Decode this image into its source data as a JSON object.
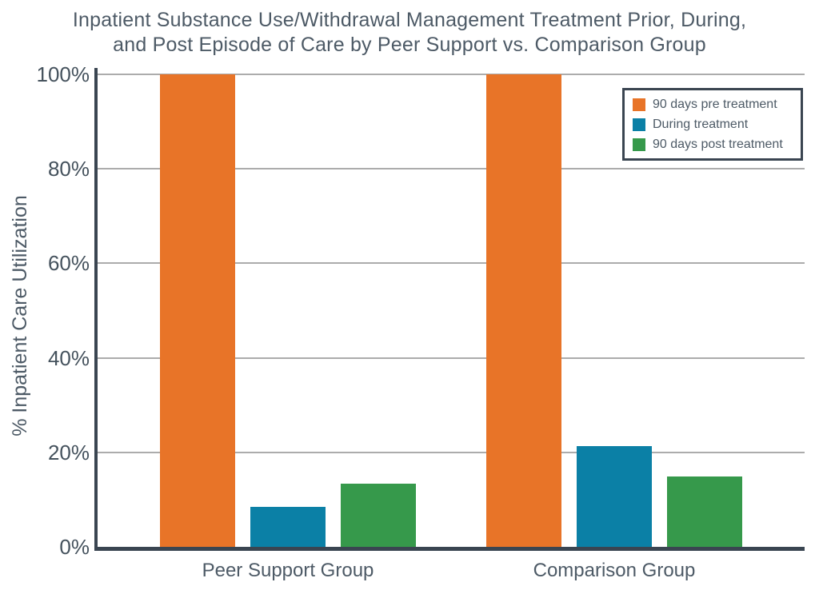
{
  "title": {
    "line1": "Inpatient Substance Use/Withdrawal Management Treatment Prior, During,",
    "line2": "and Post Episode of Care by Peer Support vs. Comparison Group"
  },
  "palette": {
    "pre_treatment_orange": "#E87428",
    "during_treatment_blue": "#0B80A6",
    "post_treatment_green": "#36994B",
    "axis_dark": "#3A4551",
    "gridline_gray": "#ACACAC",
    "text_slate": "#4D5A66"
  },
  "chart_data": {
    "type": "bar",
    "title": "Inpatient Substance Use/Withdrawal Management Treatment Prior, During, and Post Episode of Care by Peer Support vs. Comparison Group",
    "xlabel": "",
    "ylabel": "% Inpatient Care Utilization",
    "ylim": [
      0,
      100
    ],
    "grid": true,
    "legend_position": "upper right",
    "y_ticks": [
      0,
      20,
      40,
      60,
      80,
      100
    ],
    "y_tick_labels": [
      "0%",
      "20%",
      "40%",
      "60%",
      "80%",
      "100%"
    ],
    "categories": [
      "Peer Support Group",
      "Comparison Group"
    ],
    "series": [
      {
        "name": "90 days pre treatment",
        "color": "#E87428",
        "values": [
          100,
          100
        ]
      },
      {
        "name": "During treatment",
        "color": "#0B80A6",
        "values": [
          8.4,
          21.3
        ]
      },
      {
        "name": "90 days post treatment",
        "color": "#36994B",
        "values": [
          13.3,
          14.9
        ]
      }
    ]
  }
}
